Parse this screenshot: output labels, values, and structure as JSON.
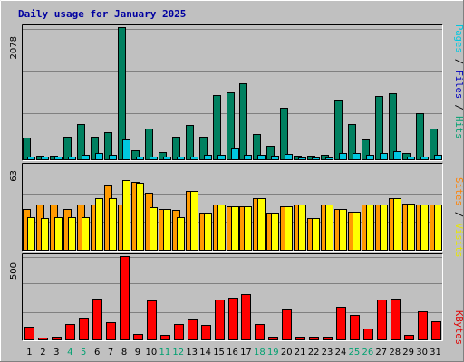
{
  "chart_data": {
    "type": "bar",
    "title": "Daily usage for January 2025",
    "categories": [
      "1",
      "2",
      "3",
      "4",
      "5",
      "6",
      "7",
      "8",
      "9",
      "10",
      "11",
      "12",
      "13",
      "14",
      "15",
      "16",
      "17",
      "18",
      "19",
      "20",
      "21",
      "22",
      "23",
      "24",
      "25",
      "26",
      "27",
      "28",
      "29",
      "30",
      "31"
    ],
    "weekend_days": [
      "4",
      "5",
      "11",
      "12",
      "18",
      "19",
      "25",
      "26"
    ],
    "panels": [
      {
        "id": "hits",
        "axis_max_label": "2078",
        "ylim": [
          0,
          2078
        ],
        "side_label": [
          {
            "text": "Pages",
            "color": "#00c8e0"
          },
          {
            "text": " / ",
            "color": "#000000"
          },
          {
            "text": "Files",
            "color": "#0000c0"
          },
          {
            "text": " / ",
            "color": "#000000"
          },
          {
            "text": "Hits",
            "color": "#00a070"
          }
        ],
        "series": [
          {
            "name": "Hits",
            "color": "#008060",
            "values": [
              350,
              70,
              70,
              370,
              570,
              370,
              440,
              2078,
              150,
              500,
              130,
              370,
              550,
              370,
              1020,
              1060,
              1200,
              410,
              230,
              820,
              70,
              70,
              90,
              930,
              570,
              330,
              1000,
              1040,
              110,
              730,
              500
            ]
          },
          {
            "name": "Pages",
            "color": "#00c8e0",
            "values": [
              50,
              50,
              50,
              50,
              80,
              120,
              90,
              320,
              50,
              50,
              50,
              60,
              60,
              80,
              80,
              180,
              90,
              80,
              70,
              100,
              40,
              40,
              40,
              120,
              120,
              90,
              120,
              140,
              50,
              60,
              80
            ]
          }
        ]
      },
      {
        "id": "visits",
        "axis_max_label": "63",
        "ylim": [
          0,
          63
        ],
        "side_label": [
          {
            "text": "Sites",
            "color": "#ff8000"
          },
          {
            "text": " / ",
            "color": "#000000"
          },
          {
            "text": "Visits",
            "color": "#e8e800"
          }
        ],
        "series": [
          {
            "name": "Visits",
            "color": "#ff9a00",
            "values": [
              31,
              34,
              34,
              31,
              34,
              34,
              49,
              34,
              51,
              43,
              31,
              30,
              44,
              28,
              34,
              33,
              33,
              39,
              28,
              33,
              34,
              24,
              34,
              31,
              29,
              34,
              34,
              39,
              35,
              34,
              34
            ]
          },
          {
            "name": "Sites",
            "color": "#ffff00",
            "values": [
              25,
              24,
              25,
              25,
              25,
              39,
              39,
              52,
              50,
              32,
              31,
              25,
              44,
              28,
              34,
              33,
              33,
              39,
              28,
              33,
              34,
              24,
              34,
              31,
              29,
              34,
              34,
              39,
              35,
              34,
              34
            ]
          }
        ]
      },
      {
        "id": "kbytes",
        "axis_max_label": "500",
        "ylim": [
          0,
          500
        ],
        "side_label": [
          {
            "text": "KBytes",
            "color": "#e00000"
          }
        ],
        "series": [
          {
            "name": "KBytes",
            "color": "#ff0000",
            "values": [
              80,
              15,
              20,
              95,
              135,
              245,
              105,
              500,
              35,
              235,
              30,
              95,
              125,
              90,
              240,
              255,
              275,
              95,
              20,
              190,
              20,
              20,
              20,
              200,
              150,
              70,
              240,
              245,
              30,
              170,
              115
            ]
          }
        ]
      }
    ],
    "colors": {
      "background": "#c0c0c0",
      "gridline": "#808080",
      "tick_weekday": "#000000",
      "tick_weekend": "#00a070",
      "title": "#0000a0"
    }
  }
}
